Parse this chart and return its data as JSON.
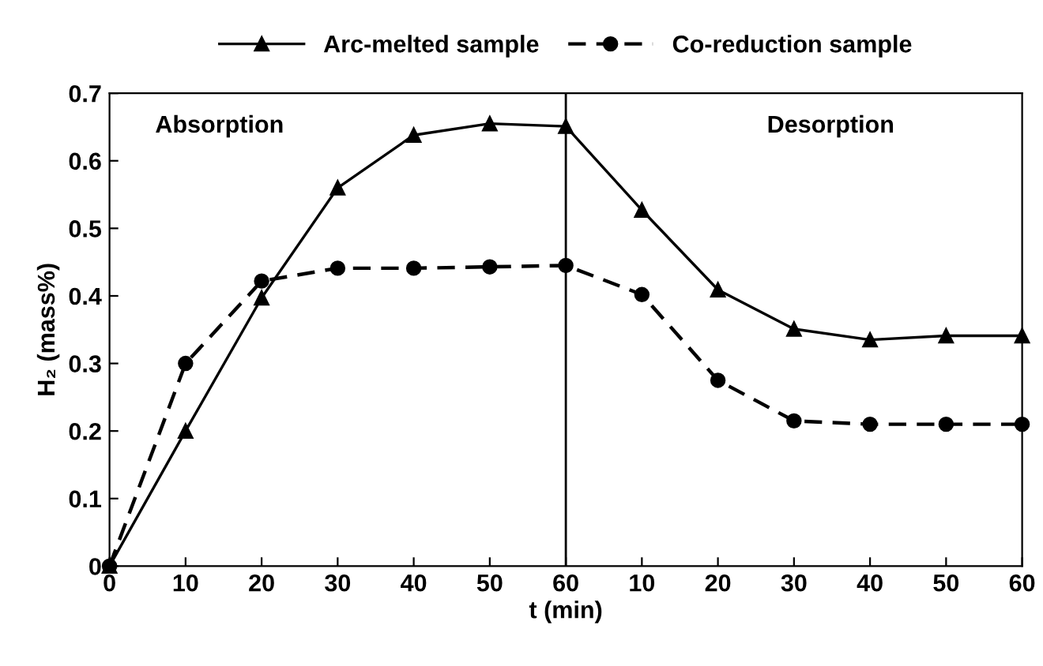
{
  "chart_data": {
    "type": "line",
    "xlabel": "t (min)",
    "ylabel": "H₂ (mass%)",
    "categories": [
      "0",
      "10",
      "20",
      "30",
      "40",
      "50",
      "60",
      "10",
      "20",
      "30",
      "40",
      "50",
      "60"
    ],
    "series": [
      {
        "name": "Arc-melted sample",
        "color": "#000000",
        "marker": "triangle",
        "line_style": "solid",
        "values": [
          0,
          0.2,
          0.397,
          0.56,
          0.638,
          0.655,
          0.651,
          0.527,
          0.409,
          0.351,
          0.335,
          0.341,
          0.341
        ]
      },
      {
        "name": "Co-reduction sample",
        "color": "#000000",
        "marker": "circle",
        "line_style": "dashed",
        "values": [
          0,
          0.3,
          0.422,
          0.441,
          0.441,
          0.443,
          0.445,
          0.402,
          0.275,
          0.215,
          0.21,
          0.21,
          0.21
        ]
      }
    ],
    "ylim": [
      0,
      0.7
    ],
    "yticks": [
      0,
      0.1,
      0.2,
      0.3,
      0.4,
      0.5,
      0.6,
      0.7
    ],
    "ref_lines": [
      {
        "axis": "x",
        "value": "60",
        "color": "#000000",
        "line_style": "solid"
      }
    ],
    "annotations": [
      "Absorption",
      "Desorption"
    ],
    "legend": "top",
    "grid": false
  }
}
